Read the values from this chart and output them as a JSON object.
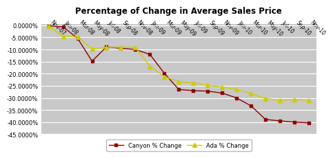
{
  "title": "Percentage of Change in Average Sales Price",
  "figure_bg": "#ffffff",
  "plot_bg_color": "#c8c8c8",
  "canyon_color": "#8b0000",
  "ada_color": "#cccc00",
  "labels": [
    "Nov-07",
    "Jan-08",
    "Mar-08",
    "May-08",
    "Jul-08",
    "Sep-08",
    "Nov-08",
    "Jan-09",
    "Mar-09",
    "May-09",
    "Jul-09",
    "Sep-09",
    "Nov-09",
    "Jan-10",
    "Mar-10",
    "May-10",
    "Jul-10",
    "Sep-10",
    "Nov-10"
  ],
  "canyon_values": [
    -0.002,
    -0.006,
    -0.054,
    -0.148,
    -0.089,
    -0.095,
    -0.1,
    -0.12,
    -0.198,
    -0.265,
    -0.27,
    -0.272,
    -0.28,
    -0.3,
    -0.333,
    -0.389,
    -0.395,
    -0.4,
    -0.403
  ],
  "ada_values": [
    -0.003,
    -0.045,
    -0.048,
    -0.097,
    -0.091,
    -0.091,
    -0.09,
    -0.17,
    -0.212,
    -0.233,
    -0.238,
    -0.248,
    -0.255,
    -0.265,
    -0.282,
    -0.303,
    -0.31,
    -0.306,
    -0.31
  ],
  "ylim": [
    -0.45,
    0.005
  ],
  "yticks": [
    0.0,
    -0.05,
    -0.1,
    -0.15,
    -0.2,
    -0.25,
    -0.3,
    -0.35,
    -0.4,
    -0.45
  ],
  "legend_labels": [
    "Canyon % Change",
    "Ada % Change"
  ]
}
